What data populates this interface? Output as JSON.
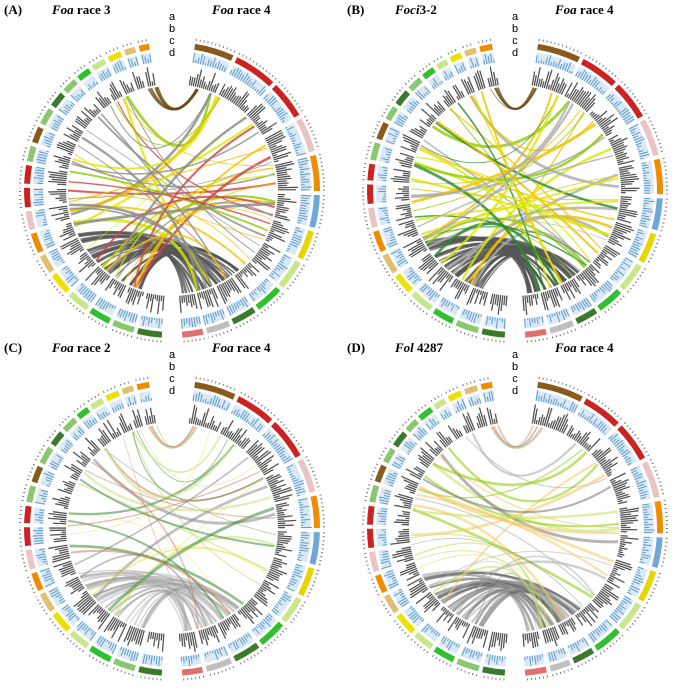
{
  "panels": [
    {
      "label": "(A)",
      "left_genome": {
        "species": "Foa",
        "strain": "race 3"
      },
      "right_genome": {
        "species": "Foa",
        "strain": "race 4"
      },
      "tracks": [
        "a",
        "b",
        "c",
        "d"
      ]
    },
    {
      "label": "(B)",
      "left_genome": {
        "species": "Foci",
        "strain": "3-2"
      },
      "right_genome": {
        "species": "Foa",
        "strain": "race 4"
      },
      "tracks": [
        "a",
        "b",
        "c",
        "d"
      ]
    },
    {
      "label": "(C)",
      "left_genome": {
        "species": "Foa",
        "strain": "race 2"
      },
      "right_genome": {
        "species": "Foa",
        "strain": "race 4"
      },
      "tracks": [
        "a",
        "b",
        "c",
        "d"
      ]
    },
    {
      "label": "(D)",
      "left_genome": {
        "species": "Fol",
        "strain": "4287"
      },
      "right_genome": {
        "species": "Foa",
        "strain": "race 4"
      },
      "tracks": [
        "a",
        "b",
        "c",
        "d"
      ]
    }
  ]
}
